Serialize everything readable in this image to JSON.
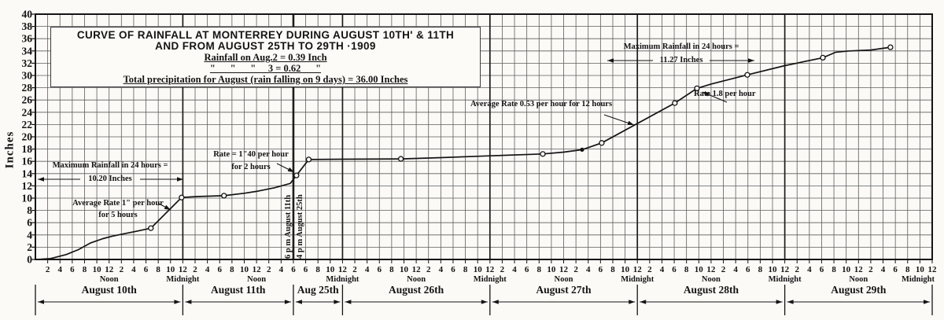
{
  "title_box": {
    "line1": "CURVE OF RAINFALL AT MONTERREY DURING AUGUST 10TH' & 11TH",
    "line2": "AND FROM AUGUST 25TH TO 29TH ·1909",
    "line3": "Rainfall on Aug.2 = 0.39 Inch",
    "line4": "\"      \"      \"     3 = 0.62      \"",
    "line5": "Total precipitation for August (rain falling on 9 days) = 36.00 Inches"
  },
  "y_axis": {
    "title": "Inches"
  },
  "x_axis": {
    "noon": "Noon",
    "midnight": "Midnight"
  },
  "annotations": {
    "max24_left_1": "Maximum Rainfall in 24 hours =",
    "max24_left_2": "10.20 Inches",
    "avg_rate_left_1": "Average Rate 1\" per hour",
    "avg_rate_left_2": "for 5 hours",
    "rate140_1": "Rate = 1\"40 per hour",
    "rate140_2": "for 2 hours",
    "vert_aug11": "6 p m August 11th",
    "vert_aug25": "4 p m August 25th",
    "avg_rate_053": "Average Rate 0.53 per hour for 12 hours",
    "max24_right_1": "Maximum Rainfall in 24 hours =",
    "max24_right_2": "11.27 Inches",
    "rate18": "Rate 1.8 per hour"
  },
  "chart_data": {
    "type": "line",
    "title": "Curve of rainfall at Monterrey during August 10th & 11th and from August 25th to 29th, 1909",
    "ylabel": "Inches",
    "ylim": [
      0,
      40
    ],
    "y_tick_step": 2,
    "x_unit": "hours along compressed time axis (1 grid column = 2 hours; axis breaks between 6 p.m. Aug 11 and 4 p.m. Aug 25)",
    "grid": true,
    "days": [
      {
        "label": "August 10th",
        "cols": 12,
        "hours": [
          "2",
          "4",
          "6",
          "8",
          "10",
          "12",
          "2",
          "4",
          "6",
          "8",
          "10",
          "12"
        ],
        "noon_col": 6,
        "midnight_col": 12
      },
      {
        "label": "August 11th",
        "cols": 9,
        "hours": [
          "2",
          "4",
          "6",
          "8",
          "10",
          "12",
          "2",
          "4",
          "6"
        ],
        "noon_col": 6
      },
      {
        "label": "Aug 25th",
        "cols": 4,
        "hours": [
          "6",
          "8",
          "10",
          "12"
        ],
        "midnight_col": 4
      },
      {
        "label": "August 26th",
        "cols": 12,
        "hours": [
          "2",
          "4",
          "6",
          "8",
          "10",
          "12",
          "2",
          "4",
          "6",
          "8",
          "10",
          "12"
        ],
        "noon_col": 6,
        "midnight_col": 12
      },
      {
        "label": "August 27th",
        "cols": 12,
        "hours": [
          "2",
          "4",
          "6",
          "8",
          "10",
          "12",
          "2",
          "4",
          "6",
          "8",
          "10",
          "12"
        ],
        "noon_col": 6,
        "midnight_col": 12
      },
      {
        "label": "August 28th",
        "cols": 12,
        "hours": [
          "2",
          "4",
          "6",
          "8",
          "10",
          "12",
          "2",
          "4",
          "6",
          "8",
          "10",
          "12"
        ],
        "noon_col": 6,
        "midnight_col": 12
      },
      {
        "label": "August 29th",
        "cols": 12,
        "hours": [
          "2",
          "4",
          "6",
          "8",
          "10",
          "12",
          "2",
          "4",
          "6",
          "8",
          "10",
          "12"
        ],
        "noon_col": 6,
        "midnight_col": 12
      }
    ],
    "points": [
      [
        0.3,
        0
      ],
      [
        2.5,
        0.15
      ],
      [
        5,
        0.8
      ],
      [
        7,
        1.6
      ],
      [
        9,
        2.7
      ],
      [
        11,
        3.4
      ],
      [
        12.5,
        3.8
      ],
      [
        14.5,
        4.2
      ],
      [
        16.5,
        4.6
      ],
      [
        18.8,
        5.1
      ],
      [
        23.8,
        10.1
      ],
      [
        26,
        10.25
      ],
      [
        30.7,
        10.4
      ],
      [
        34,
        10.8
      ],
      [
        36,
        11.1
      ],
      [
        39,
        11.7
      ],
      [
        41.5,
        12.4
      ],
      [
        42.5,
        13.7
      ],
      [
        44.5,
        16.3
      ],
      [
        50,
        16.35
      ],
      [
        59.5,
        16.4
      ],
      [
        66,
        16.6
      ],
      [
        74,
        16.9
      ],
      [
        82.6,
        17.2
      ],
      [
        86,
        17.5
      ],
      [
        89,
        17.9
      ],
      [
        92.2,
        19.0
      ],
      [
        104.1,
        25.5
      ],
      [
        107.7,
        27.9
      ],
      [
        110,
        28.6
      ],
      [
        115.9,
        30.1
      ],
      [
        122,
        31.6
      ],
      [
        128.2,
        32.9
      ],
      [
        130.3,
        33.8
      ],
      [
        132.5,
        34.0
      ],
      [
        136,
        34.15
      ],
      [
        139.2,
        34.6
      ]
    ],
    "markers": [
      [
        18.8,
        5.1
      ],
      [
        23.8,
        10.1
      ],
      [
        30.7,
        10.4
      ],
      [
        42.5,
        13.7
      ],
      [
        44.5,
        16.3
      ],
      [
        59.5,
        16.4
      ],
      [
        82.6,
        17.2
      ],
      [
        92.2,
        19.0
      ],
      [
        104.1,
        25.5
      ],
      [
        107.7,
        27.9
      ],
      [
        115.9,
        30.1
      ],
      [
        128.2,
        32.9
      ],
      [
        139.2,
        34.6
      ]
    ],
    "filled_markers": [
      [
        89,
        17.9
      ]
    ]
  }
}
